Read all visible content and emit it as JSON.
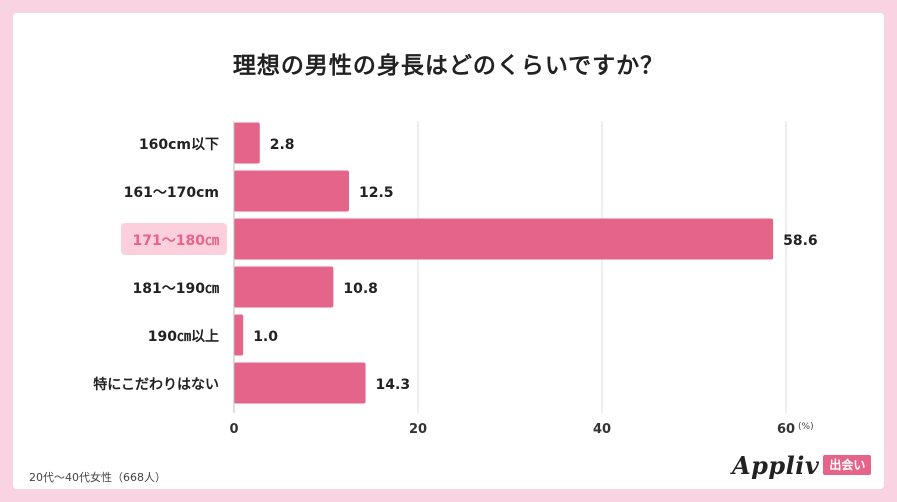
{
  "chart_data": {
    "type": "bar",
    "orientation": "horizontal",
    "title": "理想の男性の身長はどのくらいですか？",
    "categories": [
      "160cm以下",
      "161～170cm",
      "171～180㎝",
      "181～190㎝",
      "190㎝以上",
      "特にこだわりはない"
    ],
    "values": [
      2.8,
      12.5,
      58.6,
      10.8,
      1.0,
      14.3
    ],
    "value_labels": [
      "2.8",
      "12.5",
      "58.6",
      "10.8",
      "1.0",
      "14.3"
    ],
    "highlighted_category": "171～180㎝",
    "xlim": [
      0,
      60
    ],
    "xticks": [
      "0",
      "20",
      "40",
      "60"
    ],
    "unit_label": "(%)",
    "grid": true,
    "colors": {
      "bar": "#e4648a",
      "highlight_bg": "#fbd0dc",
      "highlight_text": "#e4648a",
      "grid": "#dddddd"
    }
  },
  "footnote": "20代～40代女性（668人）",
  "brand": {
    "name": "Appliv",
    "badge": "出会い"
  }
}
